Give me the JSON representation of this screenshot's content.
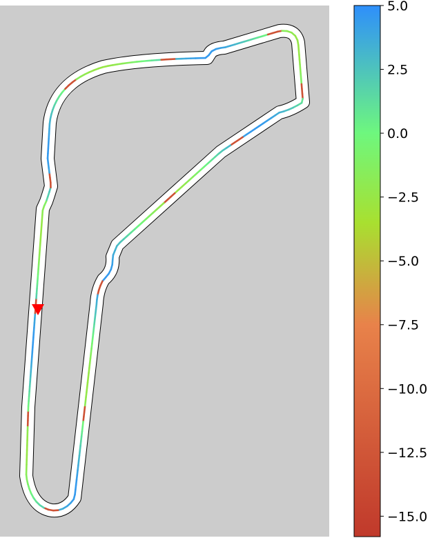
{
  "chart_data": {
    "type": "line",
    "title": "",
    "xlabel": "",
    "ylabel": "",
    "description_series": "racing line around track colored by scalar value",
    "background_color": "#cccccc",
    "track_color": "#ffffff",
    "track_edge_color": "#000000",
    "start_marker_color": "#ff0000",
    "colorbar": {
      "min": -15.0,
      "max": 5.0,
      "ticks": [
        {
          "value": 5.0,
          "label": "5.0"
        },
        {
          "value": 2.5,
          "label": "2.5"
        },
        {
          "value": 0.0,
          "label": "0.0"
        },
        {
          "value": -2.5,
          "label": "−2.5"
        },
        {
          "value": -5.0,
          "label": "−5.0"
        },
        {
          "value": -7.5,
          "label": "−7.5"
        },
        {
          "value": -10.0,
          "label": "−10.0"
        },
        {
          "value": -12.5,
          "label": "−12.5"
        },
        {
          "value": -15.0,
          "label": "−15.0"
        }
      ],
      "colors": [
        "#c0392b",
        "#e8824a",
        "#a8e030",
        "#6ef77e",
        "#2e8ffb"
      ],
      "color_stops": [
        -15.8,
        -7.5,
        -3.5,
        0.0,
        5.0
      ]
    },
    "grid": false
  }
}
